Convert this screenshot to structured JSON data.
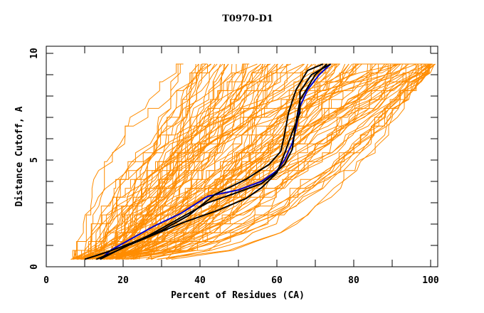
{
  "chart_data": {
    "type": "line",
    "title": "T0970-D1",
    "xlabel": "Percent of Residues (CA)",
    "ylabel": "Distance Cutoff, A",
    "xlim": [
      0,
      100
    ],
    "ylim": [
      0,
      10
    ],
    "x_ticks": [
      0,
      20,
      40,
      60,
      80,
      100
    ],
    "y_ticks": [
      0,
      5,
      10
    ],
    "x_minor_step": 10,
    "y_minor_step": 1,
    "grid": false,
    "colors": {
      "background_models": "#ff8c00",
      "highlight_black": "#000000",
      "highlight_blue": "#0000cc",
      "axis": "#000000"
    },
    "background_series_envelope": {
      "description": "many orange GDT curves from submitted models",
      "count": 120,
      "y_start": 0.35,
      "y_end": 9.5,
      "x_start_range": [
        6,
        40
      ],
      "x_end_range": [
        25,
        100
      ]
    },
    "series": [
      {
        "name": "highlight-blue",
        "color": "#0000cc",
        "x": [
          14,
          17,
          22,
          28,
          35,
          42,
          50,
          56,
          60,
          62,
          64,
          65,
          66,
          68,
          71,
          74
        ],
        "y": [
          0.35,
          0.8,
          1.3,
          1.9,
          2.5,
          3.3,
          3.6,
          4.0,
          4.5,
          5.0,
          5.8,
          6.5,
          7.5,
          8.3,
          9.0,
          9.5
        ]
      },
      {
        "name": "highlight-black-1",
        "color": "#000000",
        "x": [
          10,
          16,
          22,
          30,
          37,
          44,
          52,
          58,
          61,
          62,
          63,
          65,
          68,
          72
        ],
        "y": [
          0.35,
          0.7,
          1.1,
          1.7,
          2.4,
          3.4,
          4.1,
          4.8,
          5.4,
          6.2,
          7.2,
          8.3,
          9.2,
          9.5
        ]
      },
      {
        "name": "highlight-black-2",
        "color": "#000000",
        "x": [
          14,
          20,
          28,
          36,
          44,
          52,
          56,
          60,
          62,
          64,
          66,
          66,
          69,
          74
        ],
        "y": [
          0.35,
          0.9,
          1.5,
          2.1,
          2.6,
          3.2,
          3.7,
          4.4,
          5.3,
          6.3,
          7.2,
          8.2,
          9.0,
          9.5
        ]
      },
      {
        "name": "highlight-black-3",
        "color": "#000000",
        "x": [
          13,
          19,
          27,
          35,
          42,
          50,
          56,
          59,
          62,
          64,
          65,
          66,
          70,
          73
        ],
        "y": [
          0.35,
          0.8,
          1.5,
          2.3,
          3.0,
          3.5,
          3.9,
          4.3,
          4.8,
          5.5,
          6.8,
          7.8,
          9.0,
          9.5
        ]
      }
    ]
  }
}
